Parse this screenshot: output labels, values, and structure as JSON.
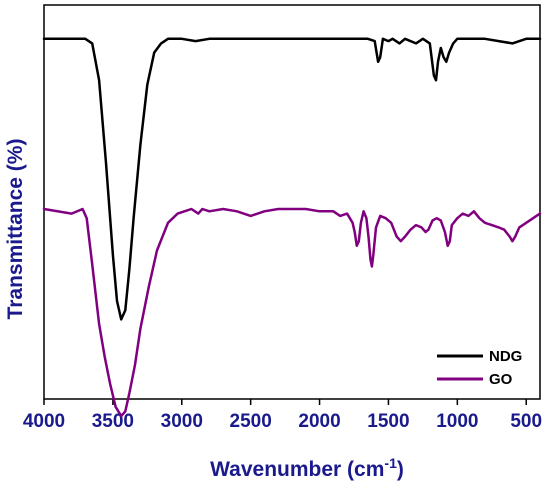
{
  "chart_data": {
    "type": "line",
    "xlabel": "Wavenumber (cm",
    "xlabel_sup": "-1",
    "xlabel_end": ")",
    "ylabel": "Transmittance (%)",
    "xlim": [
      4000,
      400
    ],
    "x_reversed": true,
    "x_ticks": [
      "4000",
      "3500",
      "3000",
      "2500",
      "2000",
      "1500",
      "1000",
      "500"
    ],
    "y_ticks_labeled": false,
    "grid": false,
    "legend_position": "bottom-right",
    "series": [
      {
        "name": "NDG",
        "color": "#000000",
        "points": [
          [
            4000,
            97
          ],
          [
            3700,
            97
          ],
          [
            3650,
            96
          ],
          [
            3600,
            88
          ],
          [
            3550,
            70
          ],
          [
            3500,
            50
          ],
          [
            3470,
            40
          ],
          [
            3440,
            36
          ],
          [
            3410,
            38
          ],
          [
            3380,
            47
          ],
          [
            3350,
            58
          ],
          [
            3300,
            74
          ],
          [
            3250,
            87
          ],
          [
            3200,
            94
          ],
          [
            3150,
            96
          ],
          [
            3100,
            97
          ],
          [
            3000,
            97
          ],
          [
            2900,
            96.5
          ],
          [
            2800,
            97
          ],
          [
            2500,
            97
          ],
          [
            2200,
            97
          ],
          [
            1800,
            97
          ],
          [
            1650,
            97
          ],
          [
            1600,
            96.5
          ],
          [
            1575,
            92
          ],
          [
            1560,
            93
          ],
          [
            1540,
            97
          ],
          [
            1500,
            96.5
          ],
          [
            1470,
            97
          ],
          [
            1420,
            96
          ],
          [
            1380,
            97
          ],
          [
            1300,
            96
          ],
          [
            1250,
            97
          ],
          [
            1200,
            96
          ],
          [
            1170,
            89
          ],
          [
            1155,
            88
          ],
          [
            1140,
            92
          ],
          [
            1120,
            95
          ],
          [
            1100,
            93
          ],
          [
            1080,
            92
          ],
          [
            1060,
            94
          ],
          [
            1030,
            96
          ],
          [
            1000,
            97
          ],
          [
            900,
            97
          ],
          [
            800,
            97
          ],
          [
            700,
            96.5
          ],
          [
            600,
            96
          ],
          [
            500,
            97
          ],
          [
            400,
            97
          ]
        ]
      },
      {
        "name": "GO",
        "color": "#800080",
        "points": [
          [
            4000,
            60
          ],
          [
            3800,
            59
          ],
          [
            3720,
            60
          ],
          [
            3690,
            58
          ],
          [
            3650,
            48
          ],
          [
            3600,
            35
          ],
          [
            3560,
            28
          ],
          [
            3520,
            22
          ],
          [
            3480,
            17
          ],
          [
            3440,
            15
          ],
          [
            3410,
            16
          ],
          [
            3380,
            20
          ],
          [
            3340,
            26
          ],
          [
            3300,
            34
          ],
          [
            3240,
            43
          ],
          [
            3180,
            51
          ],
          [
            3100,
            57
          ],
          [
            3030,
            59
          ],
          [
            2980,
            59.5
          ],
          [
            2930,
            60
          ],
          [
            2880,
            59
          ],
          [
            2850,
            60
          ],
          [
            2800,
            59.5
          ],
          [
            2700,
            60
          ],
          [
            2600,
            59.5
          ],
          [
            2500,
            58.5
          ],
          [
            2400,
            59.5
          ],
          [
            2300,
            60
          ],
          [
            2200,
            60
          ],
          [
            2100,
            60
          ],
          [
            2000,
            59.5
          ],
          [
            1900,
            59.5
          ],
          [
            1850,
            58.5
          ],
          [
            1800,
            59
          ],
          [
            1760,
            57
          ],
          [
            1745,
            55
          ],
          [
            1730,
            52
          ],
          [
            1715,
            53
          ],
          [
            1700,
            57
          ],
          [
            1680,
            59.5
          ],
          [
            1660,
            58
          ],
          [
            1645,
            54
          ],
          [
            1630,
            49
          ],
          [
            1620,
            47.5
          ],
          [
            1610,
            50
          ],
          [
            1590,
            56
          ],
          [
            1560,
            58.5
          ],
          [
            1520,
            58
          ],
          [
            1480,
            57
          ],
          [
            1440,
            54
          ],
          [
            1410,
            53
          ],
          [
            1380,
            54
          ],
          [
            1340,
            55.5
          ],
          [
            1300,
            56.5
          ],
          [
            1260,
            56
          ],
          [
            1230,
            55
          ],
          [
            1210,
            55.5
          ],
          [
            1180,
            57.5
          ],
          [
            1150,
            58
          ],
          [
            1120,
            57.5
          ],
          [
            1090,
            55
          ],
          [
            1070,
            52
          ],
          [
            1055,
            53
          ],
          [
            1040,
            56.5
          ],
          [
            1000,
            58
          ],
          [
            960,
            59
          ],
          [
            920,
            58.5
          ],
          [
            880,
            59.5
          ],
          [
            840,
            58
          ],
          [
            800,
            57
          ],
          [
            750,
            56.5
          ],
          [
            700,
            56
          ],
          [
            660,
            55.5
          ],
          [
            620,
            54
          ],
          [
            600,
            53
          ],
          [
            580,
            54
          ],
          [
            550,
            56
          ],
          [
            500,
            57
          ],
          [
            450,
            58
          ],
          [
            400,
            59
          ]
        ]
      }
    ]
  }
}
